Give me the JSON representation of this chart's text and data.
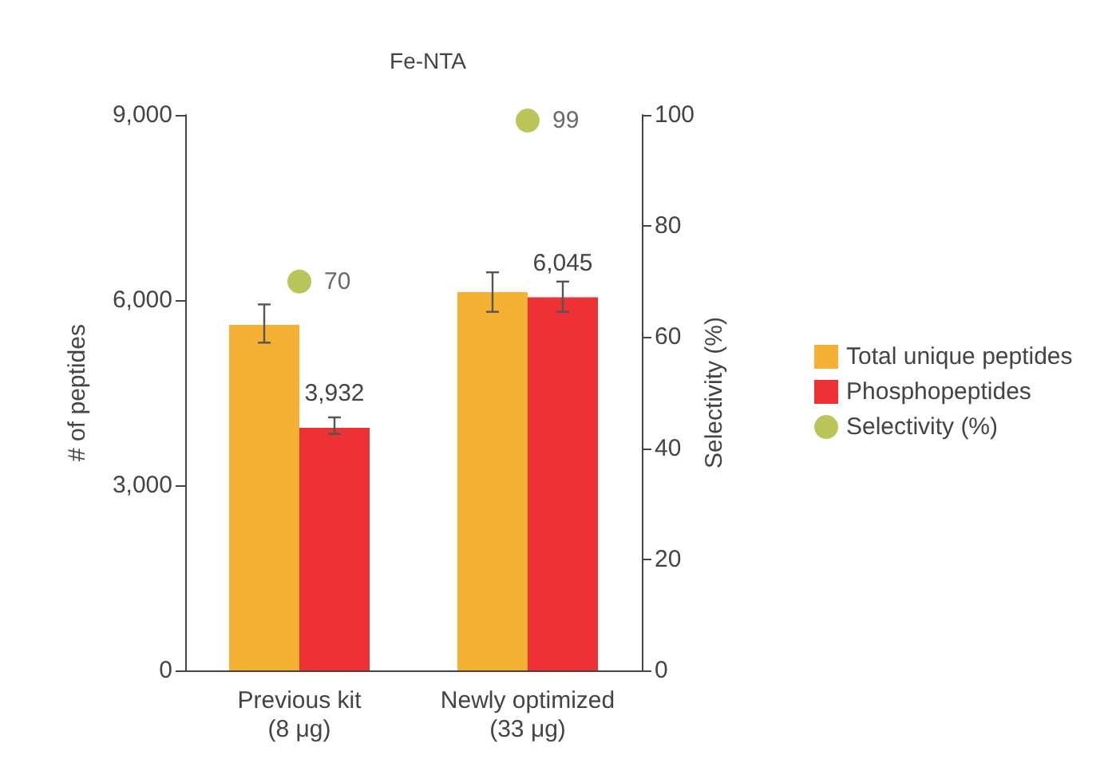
{
  "chart_data": {
    "type": "bar",
    "title": "Fe-NTA",
    "ylabel": "# of peptides",
    "y2label": "Selectivity (%)",
    "categories": [
      "Previous kit\n(8 μg)",
      "Newly optimized\n(33 μg)"
    ],
    "series": [
      {
        "name": "Total unique peptides",
        "color": "#f5b133",
        "values": [
          5600,
          6130
        ],
        "errors": [
          [
            5310,
            5930
          ],
          [
            5810,
            6450
          ]
        ]
      },
      {
        "name": "Phosphopeptides",
        "color": "#ee3134",
        "values": [
          3932,
          6045
        ],
        "errors": [
          [
            3830,
            4100
          ],
          [
            5810,
            6300
          ]
        ],
        "value_labels": [
          "3,932",
          "6,045"
        ]
      },
      {
        "name": "Selectivity (%)",
        "type": "scatter",
        "axis": "y2",
        "color": "#a9b730",
        "values": [
          70,
          99
        ],
        "value_labels": [
          "70",
          "99"
        ]
      }
    ],
    "ylim": [
      0,
      9000
    ],
    "yticks": [
      {
        "value": 0,
        "label": "0"
      },
      {
        "value": 3000,
        "label": "3,000"
      },
      {
        "value": 6000,
        "label": "6,000"
      },
      {
        "value": 9000,
        "label": "9,000"
      }
    ],
    "y2lim": [
      0,
      100
    ],
    "y2ticks": [
      0,
      20,
      40,
      60,
      80,
      100
    ],
    "grid": false,
    "legend": "right",
    "marker": "circle"
  }
}
